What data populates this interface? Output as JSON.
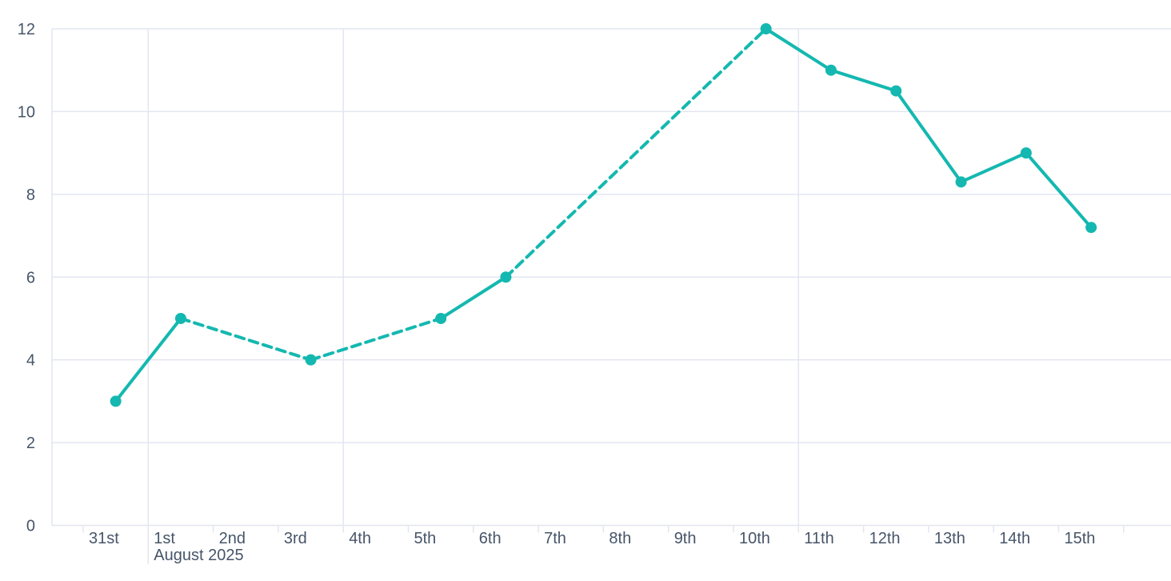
{
  "chart_data": {
    "type": "line",
    "title": "",
    "legend": "none",
    "grid": {
      "horizontal": "on (every y tick)",
      "vertical": "left border, month start and week starts only"
    },
    "x_axis": {
      "tick_labels": [
        "31st",
        "1st",
        "2nd",
        "3rd",
        "4th",
        "5th",
        "6th",
        "7th",
        "8th",
        "9th",
        "10th",
        "11th",
        "12th",
        "13th",
        "14th",
        "15th"
      ],
      "trailing_unlabeled_ticks": 1,
      "month_label": {
        "text": "August 2025",
        "under_tick": "1st"
      },
      "vertical_gridline_ticks": [
        "1st",
        "4th",
        "11th"
      ]
    },
    "y_axis": {
      "min": 0,
      "max": 12,
      "ticks": [
        0,
        2,
        4,
        6,
        8,
        10,
        12
      ]
    },
    "series": [
      {
        "points": [
          {
            "day": "31st",
            "value": 3
          },
          {
            "day": "1st",
            "value": 5
          },
          {
            "day": "3rd",
            "value": 4
          },
          {
            "day": "5th",
            "value": 5
          },
          {
            "day": "6th",
            "value": 6
          },
          {
            "day": "10th",
            "value": 12
          },
          {
            "day": "11th",
            "value": 11
          },
          {
            "day": "12th",
            "value": 10.5
          },
          {
            "day": "13th",
            "value": 8.3
          },
          {
            "day": "14th",
            "value": 9
          },
          {
            "day": "15th",
            "value": 7.2
          }
        ],
        "dashed_segments": [
          [
            "1st",
            "3rd"
          ],
          [
            "3rd",
            "5th"
          ],
          [
            "6th",
            "10th"
          ]
        ]
      }
    ],
    "colors": {
      "line": "#14b8b0",
      "marker": "#14b8b0",
      "axis_label": "#475569",
      "gridline": "#e3e6f0",
      "tick": "#e3e6f0",
      "background": "#ffffff"
    }
  }
}
